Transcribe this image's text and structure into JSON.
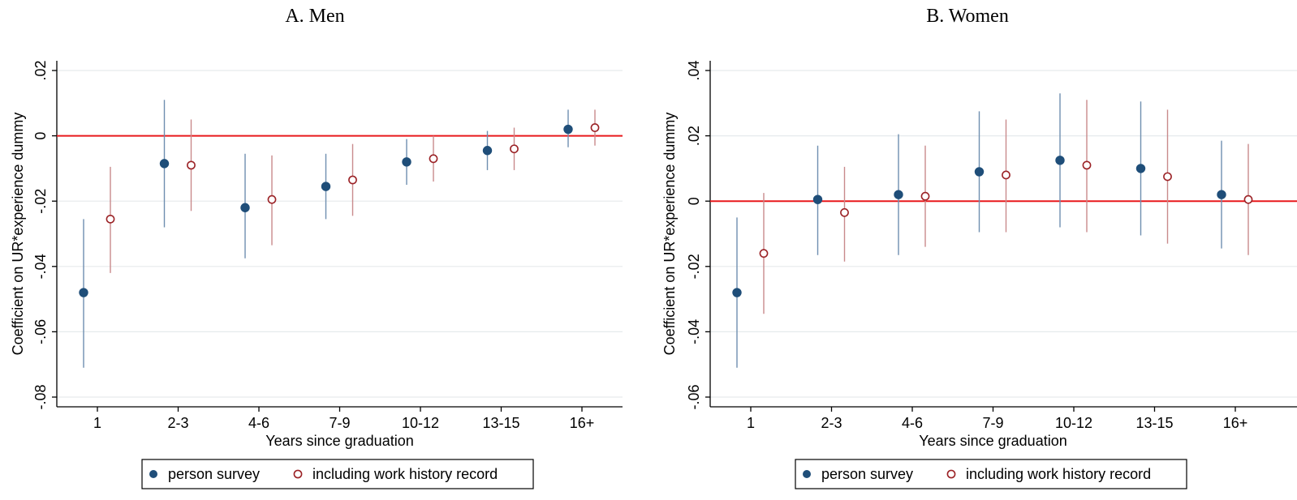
{
  "chart_data": [
    {
      "type": "scatter",
      "title": "A. Men",
      "xlabel": "Years since graduation",
      "ylabel": "Coefficient on UR*experience dummy",
      "categories": [
        "1",
        "2-3",
        "4-6",
        "7-9",
        "10-12",
        "13-15",
        "16+"
      ],
      "ylim": [
        -0.08,
        0.02
      ],
      "yticks": [
        -0.08,
        -0.06,
        -0.04,
        -0.02,
        0,
        0.02
      ],
      "ytick_labels": [
        "-.08",
        "-.06",
        "-.04",
        "-.02",
        "0",
        ".02"
      ],
      "reference_line": 0,
      "grid": true,
      "legend_position": "bottom",
      "series": [
        {
          "name": "person survey",
          "marker": "filled-circle",
          "color": "#1f4e79",
          "values": [
            -0.048,
            -0.0085,
            -0.022,
            -0.0155,
            -0.008,
            -0.0045,
            0.002
          ],
          "ci_low": [
            -0.071,
            -0.028,
            -0.0375,
            -0.0255,
            -0.015,
            -0.0105,
            -0.0035
          ],
          "ci_high": [
            -0.0255,
            0.011,
            -0.0055,
            -0.0055,
            -0.001,
            0.0015,
            0.008
          ]
        },
        {
          "name": "including work history record",
          "marker": "hollow-circle",
          "color": "#9b2226",
          "values": [
            -0.0255,
            -0.009,
            -0.0195,
            -0.0135,
            -0.007,
            -0.004,
            0.0025
          ],
          "ci_low": [
            -0.042,
            -0.023,
            -0.0335,
            -0.0245,
            -0.014,
            -0.0105,
            -0.003
          ],
          "ci_high": [
            -0.0095,
            0.005,
            -0.006,
            -0.0025,
            0.0,
            0.0025,
            0.008
          ]
        }
      ]
    },
    {
      "type": "scatter",
      "title": "B. Women",
      "xlabel": "Years since graduation",
      "ylabel": "Coefficient on UR*experience dummy",
      "categories": [
        "1",
        "2-3",
        "4-6",
        "7-9",
        "10-12",
        "13-15",
        "16+"
      ],
      "ylim": [
        -0.06,
        0.04
      ],
      "yticks": [
        -0.06,
        -0.04,
        -0.02,
        0,
        0.02,
        0.04
      ],
      "ytick_labels": [
        "-.06",
        "-.04",
        "-.02",
        "0",
        ".02",
        ".04"
      ],
      "reference_line": 0,
      "grid": true,
      "legend_position": "bottom",
      "series": [
        {
          "name": "person survey",
          "marker": "filled-circle",
          "color": "#1f4e79",
          "values": [
            -0.028,
            0.0005,
            0.002,
            0.009,
            0.0125,
            0.01,
            0.002
          ],
          "ci_low": [
            -0.051,
            -0.0165,
            -0.0165,
            -0.0095,
            -0.008,
            -0.0105,
            -0.0145
          ],
          "ci_high": [
            -0.005,
            0.017,
            0.0205,
            0.0275,
            0.033,
            0.0305,
            0.0185
          ]
        },
        {
          "name": "including work history record",
          "marker": "hollow-circle",
          "color": "#9b2226",
          "values": [
            -0.016,
            -0.0035,
            0.0015,
            0.008,
            0.011,
            0.0075,
            0.0005
          ],
          "ci_low": [
            -0.0345,
            -0.0185,
            -0.014,
            -0.0095,
            -0.0095,
            -0.013,
            -0.0165
          ],
          "ci_high": [
            0.0025,
            0.0105,
            0.017,
            0.025,
            0.031,
            0.028,
            0.0175
          ]
        }
      ]
    }
  ]
}
